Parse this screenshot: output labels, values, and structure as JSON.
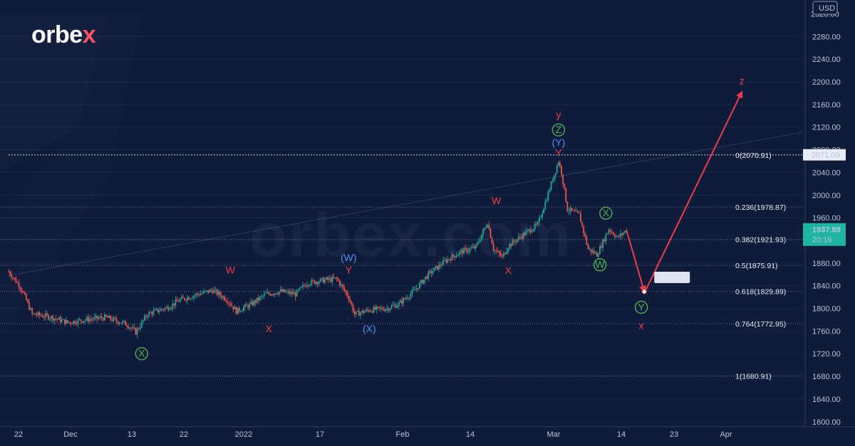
{
  "brand": {
    "logo_main": "orbe",
    "logo_x": "x",
    "watermark": "orbex.com"
  },
  "chart_data": {
    "type": "candlestick",
    "currency_label": "USD",
    "ylim": [
      1580,
      2340
    ],
    "y_ticks": [
      2280,
      2240,
      2200,
      2160,
      2120,
      2080,
      2040,
      2000,
      1960,
      1920,
      1880,
      1840,
      1800,
      1760,
      1720,
      1680,
      1640,
      1600
    ],
    "y_tick_labels": [
      "2280.00",
      "2240.00",
      "2200.00",
      "2160.00",
      "2120.00",
      "2080.00",
      "2040.00",
      "2000.00",
      "1960.00",
      "1920.00",
      "1880.00",
      "1840.00",
      "1800.00",
      "1760.00",
      "1720.00",
      "1680.00",
      "1640.00",
      "1600.00"
    ],
    "x_axis_labels": [
      "22",
      "Dec",
      "13",
      "22",
      "2022",
      "17",
      "Feb",
      "14",
      "Mar",
      "14",
      "23",
      "Apr"
    ],
    "current_price": "1937.89",
    "countdown": "20:16",
    "high_price_label": "2071.09",
    "target_label": "1829.54",
    "fib_levels": [
      {
        "ratio": "0",
        "value": 2070.91,
        "label": "0(2070.91)"
      },
      {
        "ratio": "0.236",
        "value": 1978.87,
        "label": "0.236(1978.87)"
      },
      {
        "ratio": "0.382",
        "value": 1921.93,
        "label": "0.382(1921.93)"
      },
      {
        "ratio": "0.5",
        "value": 1875.91,
        "label": "0.5(1875.91)"
      },
      {
        "ratio": "0.618",
        "value": 1829.89,
        "label": "0.618(1829.89)"
      },
      {
        "ratio": "0.764",
        "value": 1772.95,
        "label": "0.764(1772.95)"
      },
      {
        "ratio": "1",
        "value": 1680.91,
        "label": "1(1680.91)"
      }
    ],
    "price_path": [
      {
        "d": 0,
        "p": 1865
      },
      {
        "d": 4,
        "p": 1838
      },
      {
        "d": 8,
        "p": 1790
      },
      {
        "d": 14,
        "p": 1785
      },
      {
        "d": 20,
        "p": 1775
      },
      {
        "d": 26,
        "p": 1780
      },
      {
        "d": 33,
        "p": 1784
      },
      {
        "d": 40,
        "p": 1772
      },
      {
        "d": 43,
        "p": 1758
      },
      {
        "d": 47,
        "p": 1790
      },
      {
        "d": 54,
        "p": 1802
      },
      {
        "d": 58,
        "p": 1815
      },
      {
        "d": 64,
        "p": 1825
      },
      {
        "d": 69,
        "p": 1832
      },
      {
        "d": 74,
        "p": 1815
      },
      {
        "d": 77,
        "p": 1795
      },
      {
        "d": 82,
        "p": 1807
      },
      {
        "d": 87,
        "p": 1825
      },
      {
        "d": 92,
        "p": 1830
      },
      {
        "d": 97,
        "p": 1825
      },
      {
        "d": 101,
        "p": 1845
      },
      {
        "d": 107,
        "p": 1850
      },
      {
        "d": 111,
        "p": 1852
      },
      {
        "d": 115,
        "p": 1820
      },
      {
        "d": 117,
        "p": 1790
      },
      {
        "d": 122,
        "p": 1797
      },
      {
        "d": 128,
        "p": 1800
      },
      {
        "d": 132,
        "p": 1808
      },
      {
        "d": 137,
        "p": 1830
      },
      {
        "d": 142,
        "p": 1860
      },
      {
        "d": 148,
        "p": 1885
      },
      {
        "d": 153,
        "p": 1900
      },
      {
        "d": 158,
        "p": 1908
      },
      {
        "d": 162,
        "p": 1952
      },
      {
        "d": 164,
        "p": 1905
      },
      {
        "d": 167,
        "p": 1890
      },
      {
        "d": 169,
        "p": 1910
      },
      {
        "d": 174,
        "p": 1930
      },
      {
        "d": 179,
        "p": 1948
      },
      {
        "d": 182,
        "p": 1995
      },
      {
        "d": 186,
        "p": 2060
      },
      {
        "d": 187,
        "p": 2040
      },
      {
        "d": 189,
        "p": 1975
      },
      {
        "d": 193,
        "p": 1965
      },
      {
        "d": 196,
        "p": 1905
      },
      {
        "d": 199,
        "p": 1895
      },
      {
        "d": 203,
        "p": 1940
      },
      {
        "d": 206,
        "p": 1925
      },
      {
        "d": 209,
        "p": 1938
      }
    ],
    "wave_labels": [
      {
        "text": "X",
        "circled": true,
        "color": "#4caf50",
        "d": 45,
        "p": 1720
      },
      {
        "text": "W",
        "circled": false,
        "color": "#ef3b4e",
        "d": 75,
        "p": 1868
      },
      {
        "text": "X",
        "circled": false,
        "color": "#ef3b4e",
        "d": 88,
        "p": 1764
      },
      {
        "text": "(W)",
        "circled": false,
        "color": "#4f8ff7",
        "d": 115,
        "p": 1890
      },
      {
        "text": "Y",
        "circled": false,
        "color": "#ef3b4e",
        "d": 115,
        "p": 1868
      },
      {
        "text": "(X)",
        "circled": false,
        "color": "#4f8ff7",
        "d": 122,
        "p": 1764
      },
      {
        "text": "W",
        "circled": false,
        "color": "#ef3b4e",
        "d": 165,
        "p": 1990
      },
      {
        "text": "X",
        "circled": false,
        "color": "#ef3b4e",
        "d": 169,
        "p": 1867
      },
      {
        "text": "y",
        "circled": false,
        "color": "#ef3b4e",
        "d": 186,
        "p": 2142
      },
      {
        "text": "Z",
        "circled": true,
        "color": "#4caf50",
        "d": 186,
        "p": 2115
      },
      {
        "text": "(Y)",
        "circled": false,
        "color": "#4f8ff7",
        "d": 186,
        "p": 2093
      },
      {
        "text": "Y",
        "circled": false,
        "color": "#ef3b4e",
        "d": 186,
        "p": 2075
      },
      {
        "text": "X",
        "circled": true,
        "color": "#4caf50",
        "d": 202,
        "p": 1968
      },
      {
        "text": "W",
        "circled": true,
        "color": "#4caf50",
        "d": 200,
        "p": 1877
      },
      {
        "text": "Y",
        "circled": true,
        "color": "#4caf50",
        "d": 214,
        "p": 1802
      },
      {
        "text": "x",
        "circled": false,
        "color": "#ef3b4e",
        "d": 214,
        "p": 1770
      },
      {
        "text": "z",
        "circled": false,
        "color": "#ef3b4e",
        "d": 248,
        "p": 2202
      }
    ],
    "projection": [
      {
        "d": 209,
        "p": 1938
      },
      {
        "d": 215,
        "p": 1829.54
      },
      {
        "d": 248,
        "p": 2182
      }
    ],
    "trendline": [
      {
        "d": 0,
        "p": 1858
      },
      {
        "d": 226,
        "p": 2070.91
      }
    ]
  }
}
